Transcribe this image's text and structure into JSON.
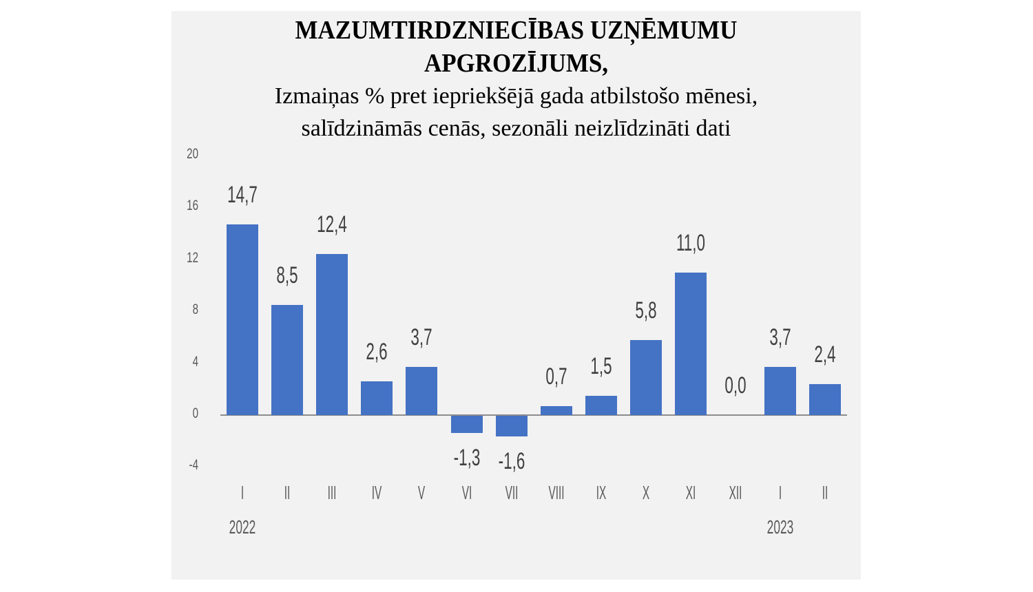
{
  "chart_data": {
    "type": "bar",
    "title": "MAZUMTIRDZNIECĪBAS UZŅĒMUMU APGROZĪJUMS,",
    "subtitle": "Izmaiņas % pret iepriekšējā gada atbilstošo mēnesi, salīdzināmās cenās, sezonāli neizlīdzināti dati",
    "categories": [
      "I",
      "II",
      "III",
      "IV",
      "V",
      "VI",
      "VII",
      "VIII",
      "IX",
      "X",
      "XI",
      "XII",
      "I",
      "II"
    ],
    "years": [
      {
        "label": "2022",
        "index": 0
      },
      {
        "label": "2023",
        "index": 12
      }
    ],
    "values": [
      14.7,
      8.5,
      12.4,
      2.6,
      3.7,
      -1.3,
      -1.6,
      0.7,
      1.5,
      5.8,
      11.0,
      0.0,
      3.7,
      2.4
    ],
    "value_labels": [
      "14,7",
      "8,5",
      "12,4",
      "2,6",
      "3,7",
      "-1,3",
      "-1,6",
      "0,7",
      "1,5",
      "5,8",
      "11,0",
      "0,0",
      "3,7",
      "2,4"
    ],
    "yticks": [
      "20",
      "16",
      "12",
      "8",
      "4",
      "0",
      "-4"
    ],
    "ylim": [
      -4,
      20
    ],
    "xlabel": "",
    "ylabel": "",
    "grid": false,
    "legend": null,
    "bar_color": "#4472c4"
  },
  "title": {
    "line1": "MAZUMTIRDZNIECĪBAS UZŅĒMUMU",
    "line2": "APGROZĪJUMS,",
    "line3": "Izmaiņas % pret iepriekšējā gada atbilstošo mēnesi,",
    "line4": "salīdzināmās cenās, sezonāli neizlīdzināti dati"
  }
}
